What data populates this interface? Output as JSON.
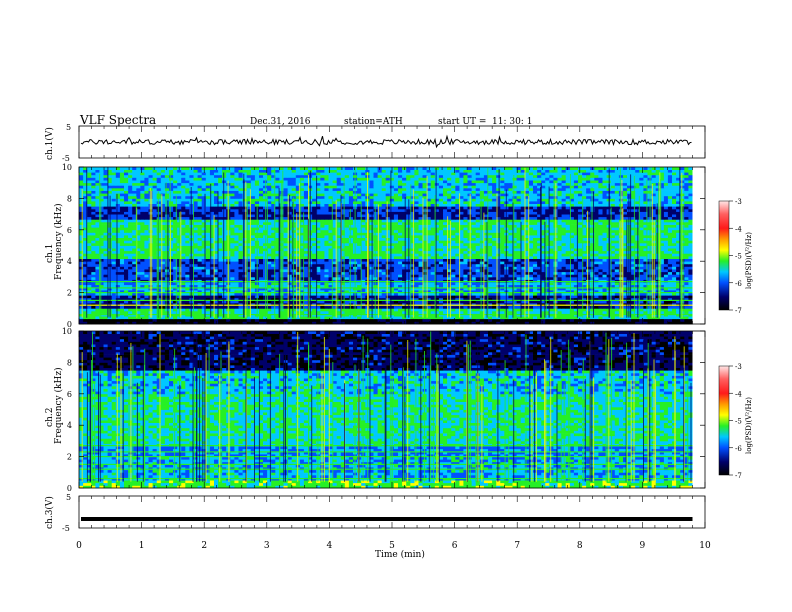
{
  "header": {
    "title": "VLF  Spectra",
    "date": "Dec.31, 2016",
    "station": "station=ATH",
    "start_label": "start  UT  =",
    "start_time": "11: 30: 1"
  },
  "colorbar": {
    "label": "log(PSD)(V²/Hz)",
    "ticks": [
      "-3",
      "-4",
      "-5",
      "-6",
      "-7"
    ],
    "colors": [
      "#ffe8e8",
      "#ff2020",
      "#ff9a00",
      "#ffff00",
      "#26f026",
      "#00c8ff",
      "#0050ff",
      "#00006a",
      "#000000"
    ]
  },
  "chart_data": [
    {
      "type": "line",
      "ylabel": "ch.1(V)",
      "ylim": [
        -5,
        5
      ],
      "y_ticks": [
        "5",
        "-5"
      ],
      "xlim": [
        0,
        10
      ],
      "line_level": 0,
      "series": [
        {
          "values": []
        }
      ]
    },
    {
      "type": "heatmap",
      "ylabel_top": "ch.1",
      "ylabel": "Frequency (kHz)",
      "ylim": [
        0,
        10
      ],
      "y_ticks": [
        "0",
        "2",
        "4",
        "6",
        "8",
        "10"
      ],
      "xlim": [
        0,
        9.8
      ],
      "zlim": [
        -7,
        -3
      ],
      "band_rows_khz": [
        {
          "f": [
            0.0,
            0.4
          ],
          "z": -7
        },
        {
          "f": [
            0.4,
            1.0
          ],
          "z": -5.2
        },
        {
          "f": [
            1.0,
            1.8
          ],
          "z": -6.4
        },
        {
          "f": [
            1.8,
            2.6
          ],
          "z": -5.6
        },
        {
          "f": [
            2.6,
            4.2
          ],
          "z": -6.1
        },
        {
          "f": [
            4.2,
            6.6
          ],
          "z": -5.2
        },
        {
          "f": [
            6.6,
            7.5
          ],
          "z": -6.3
        },
        {
          "f": [
            7.5,
            10.0
          ],
          "z": -5.5
        }
      ]
    },
    {
      "type": "heatmap",
      "ylabel_top": "ch.2",
      "ylabel": "Frequency (kHz)",
      "ylim": [
        0,
        10
      ],
      "y_ticks": [
        "0",
        "2",
        "4",
        "6",
        "8",
        "10"
      ],
      "xlim": [
        0,
        9.8
      ],
      "zlim": [
        -7,
        -3
      ],
      "band_rows_khz": [
        {
          "f": [
            0.0,
            0.5
          ],
          "z": -5.0
        },
        {
          "f": [
            0.5,
            2.0
          ],
          "z": -5.6
        },
        {
          "f": [
            2.0,
            2.7
          ],
          "z": -5.8
        },
        {
          "f": [
            2.7,
            6.0
          ],
          "z": -5.3
        },
        {
          "f": [
            6.0,
            7.5
          ],
          "z": -5.5
        },
        {
          "f": [
            7.5,
            10.0
          ],
          "z": -6.6
        }
      ]
    },
    {
      "type": "line",
      "ylabel": "ch.3(V)",
      "ylim": [
        -5,
        5
      ],
      "y_ticks": [
        "5",
        "-5"
      ],
      "xlim": [
        0,
        10
      ],
      "line_level": -2.2,
      "series": [
        {
          "values": []
        }
      ]
    }
  ],
  "x_axis": {
    "label": "Time  (min)",
    "ticks": [
      "0",
      "1",
      "2",
      "3",
      "4",
      "5",
      "6",
      "7",
      "8",
      "9",
      "10"
    ]
  }
}
